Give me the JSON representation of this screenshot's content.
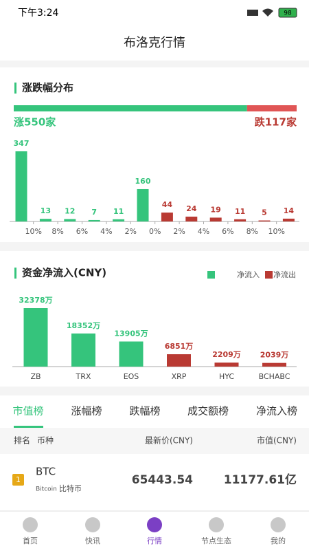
{
  "status_bar": {
    "time": "下午3:24",
    "battery": "98"
  },
  "header": {
    "title": "布洛克行情"
  },
  "distribution": {
    "title": "涨跌幅分布",
    "up": {
      "value": 550,
      "label": "涨550家"
    },
    "down": {
      "value": 117,
      "label": "跌117家"
    }
  },
  "chart_data": [
    {
      "type": "bar",
      "categories": [
        null,
        null,
        null,
        null,
        null,
        null,
        null,
        null,
        null,
        null,
        null,
        null
      ],
      "values": [
        347,
        13,
        12,
        7,
        11,
        160,
        44,
        24,
        19,
        11,
        5,
        14
      ],
      "colors": [
        "#35c47c",
        "#35c47c",
        "#35c47c",
        "#35c47c",
        "#35c47c",
        "#35c47c",
        "#b93a33",
        "#b93a33",
        "#b93a33",
        "#b93a33",
        "#b93a33",
        "#b93a33"
      ],
      "boundary_labels": [
        "10%",
        "8%",
        "6%",
        "4%",
        "2%",
        "0%",
        "2%",
        "4%",
        "6%",
        "8%",
        "10%"
      ],
      "ylim": [
        0,
        350
      ]
    },
    {
      "type": "bar",
      "title": "资金净流入(CNY)",
      "categories": [
        "ZB",
        "TRX",
        "EOS",
        "XRP",
        "HYC",
        "BCHABC"
      ],
      "values": [
        32378,
        18352,
        13905,
        6851,
        2209,
        2039
      ],
      "value_labels": [
        "32378万",
        "18352万",
        "13905万",
        "6851万",
        "2209万",
        "2039万"
      ],
      "colors": [
        "#35c47c",
        "#35c47c",
        "#35c47c",
        "#b93a33",
        "#b93a33",
        "#b93a33"
      ],
      "series": [
        {
          "name": "净流入",
          "color": "#35c47c"
        },
        {
          "name": "净流出",
          "color": "#b93a33"
        }
      ],
      "ylim": [
        0,
        32500
      ]
    }
  ],
  "tabs": {
    "items": [
      "市值榜",
      "涨幅榜",
      "跌幅榜",
      "成交额榜",
      "净流入榜"
    ],
    "active": 0
  },
  "table": {
    "header": [
      "排名",
      "币种",
      "最新价(CNY)",
      "市值(CNY)"
    ],
    "rows": [
      {
        "rank": "1",
        "symbol": "BTC",
        "name": "Bitcoin",
        "cn_name": "比特币",
        "price": "65443.54",
        "cap": "11177.61亿"
      }
    ]
  },
  "nav": {
    "items": [
      "首页",
      "快讯",
      "行情",
      "节点生态",
      "我的"
    ],
    "active": 2
  }
}
